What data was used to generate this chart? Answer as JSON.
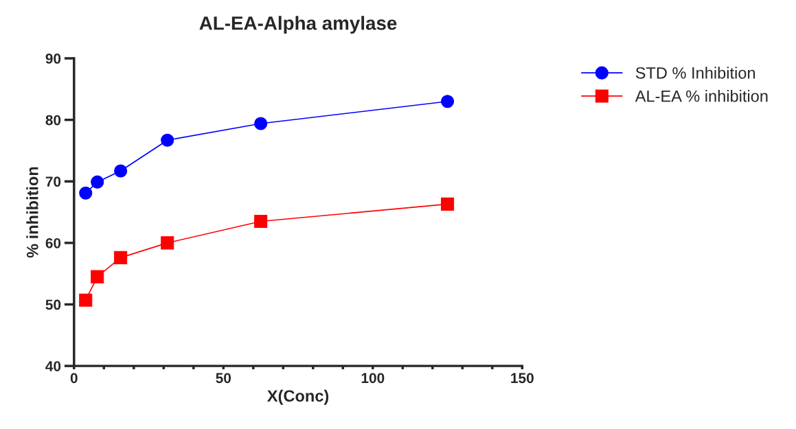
{
  "chart_data": {
    "type": "line",
    "title": "AL-EA-Alpha amylase",
    "xlabel": "X(Conc)",
    "ylabel": "% inhibition",
    "x": [
      3.9,
      7.8,
      15.6,
      31.25,
      62.5,
      125
    ],
    "series": [
      {
        "name": "STD % Inhibition",
        "color": "#0000ff",
        "marker": "circle",
        "values": [
          68.1,
          69.9,
          71.7,
          76.7,
          79.4,
          83.0
        ]
      },
      {
        "name": "AL-EA % inhibition",
        "color": "#ff0000",
        "marker": "square",
        "values": [
          50.7,
          54.5,
          57.6,
          60.0,
          63.5,
          66.3
        ]
      }
    ],
    "xlim": [
      0,
      150
    ],
    "ylim": [
      40,
      90
    ],
    "xticks": [
      0,
      {
        "value": 10,
        "label": null
      },
      {
        "value": 20,
        "label": null
      },
      {
        "value": 30,
        "label": null
      },
      {
        "value": 40,
        "label": null
      },
      50,
      {
        "value": 60,
        "label": null
      },
      {
        "value": 70,
        "label": null
      },
      {
        "value": 80,
        "label": null
      },
      {
        "value": 90,
        "label": null
      },
      100,
      {
        "value": 110,
        "label": null
      },
      {
        "value": 120,
        "label": null
      },
      {
        "value": 130,
        "label": null
      },
      {
        "value": 140,
        "label": null
      },
      150
    ],
    "yticks": [
      40,
      50,
      60,
      70,
      80,
      90
    ],
    "grid": false,
    "legend": "top right",
    "line_style": "solid"
  }
}
